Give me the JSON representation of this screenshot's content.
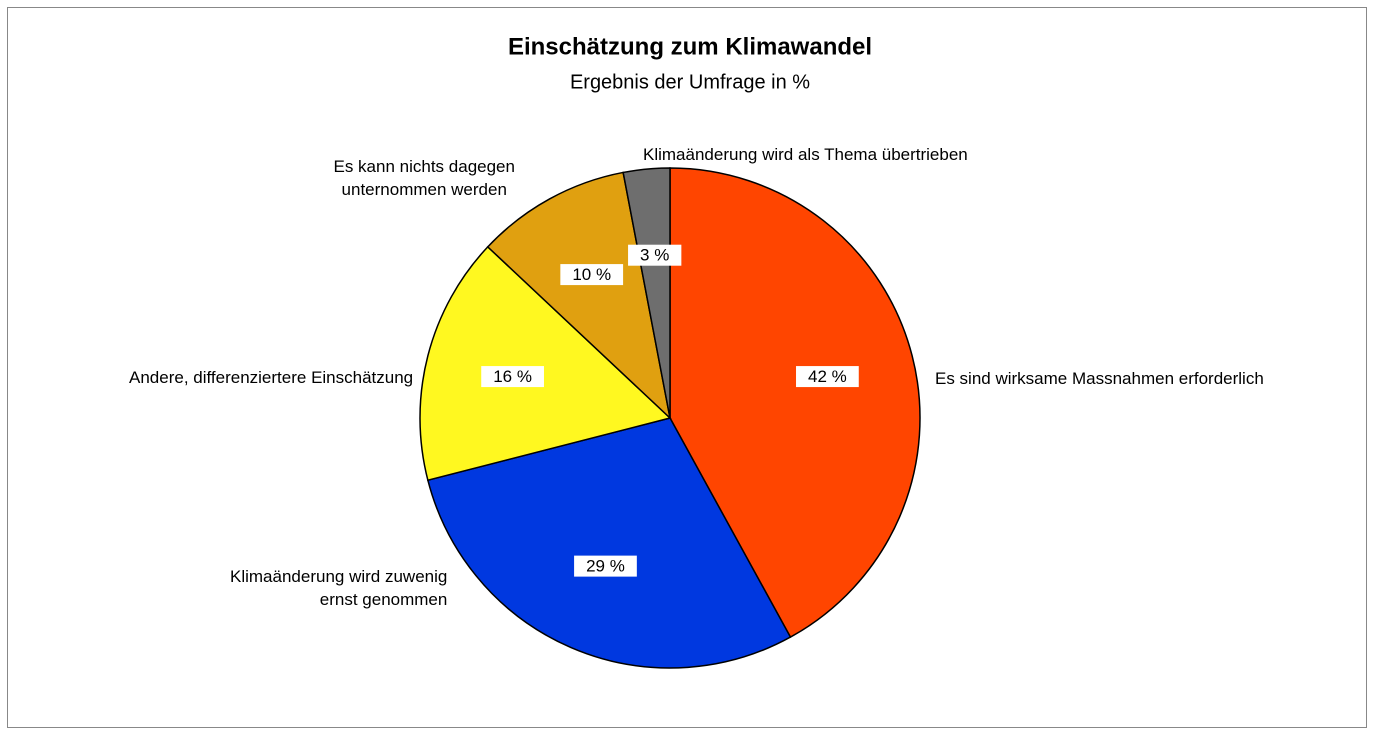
{
  "chart_data": {
    "type": "pie",
    "title": "Einschätzung zum Klimawandel",
    "subtitle": "Ergebnis der Umfrage in %",
    "categories": [
      "Es sind wirksame Massnahmen erforderlich",
      "Klimaänderung wird zuwenig\nernst genommen",
      "Andere, differenziertere Einschätzung",
      "Es kann nichts dagegen\nunternommen werden",
      "Klimaänderung wird als Thema übertrieben"
    ],
    "values": [
      42,
      29,
      16,
      10,
      3
    ],
    "value_labels": [
      "42 %",
      "29 %",
      "16 %",
      "10 %",
      "3 %"
    ],
    "colors": [
      "#ff4500",
      "#0038e0",
      "#fff820",
      "#e0a010",
      "#6e6e6e"
    ]
  }
}
